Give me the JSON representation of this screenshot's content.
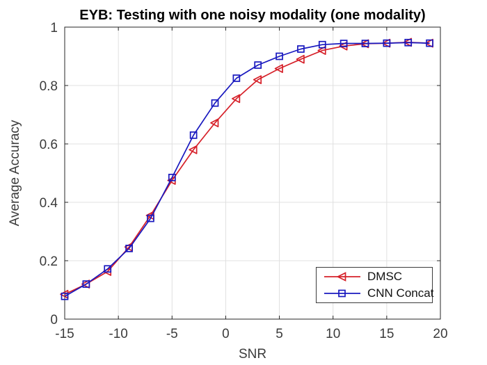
{
  "figure": {
    "background": "#ffffff",
    "axis_color": "#262626",
    "grid_color": "#e0e0e0",
    "tick_text_color": "#3b3b3b"
  },
  "chart_data": {
    "type": "line",
    "title": "EYB: Testing with one noisy modality (one modality)",
    "xlabel": "SNR",
    "ylabel": "Average Accuracy",
    "xlim": [
      -15,
      20
    ],
    "ylim": [
      0,
      1
    ],
    "xticks": [
      -15,
      -10,
      -5,
      0,
      5,
      10,
      15,
      20
    ],
    "yticks": [
      0,
      0.2,
      0.4,
      0.6,
      0.8,
      1
    ],
    "grid": true,
    "legend_position": "inside-bottom-right",
    "x": [
      -15,
      -13,
      -11,
      -9,
      -7,
      -5,
      -3,
      -1,
      1,
      3,
      5,
      7,
      9,
      11,
      13,
      15,
      17,
      19
    ],
    "series": [
      {
        "name": "DMSC",
        "color": "#d62029",
        "marker": "triangle-left",
        "line_style": "solid",
        "values": [
          0.085,
          0.12,
          0.163,
          0.247,
          0.355,
          0.475,
          0.58,
          0.672,
          0.755,
          0.82,
          0.858,
          0.89,
          0.92,
          0.935,
          0.943,
          0.945,
          0.948,
          0.945
        ]
      },
      {
        "name": "CNN Concat",
        "color": "#1818bf",
        "marker": "square",
        "line_style": "solid",
        "values": [
          0.078,
          0.12,
          0.172,
          0.242,
          0.345,
          0.485,
          0.63,
          0.74,
          0.825,
          0.87,
          0.9,
          0.925,
          0.94,
          0.944,
          0.944,
          0.945,
          0.947,
          0.945
        ]
      }
    ]
  }
}
